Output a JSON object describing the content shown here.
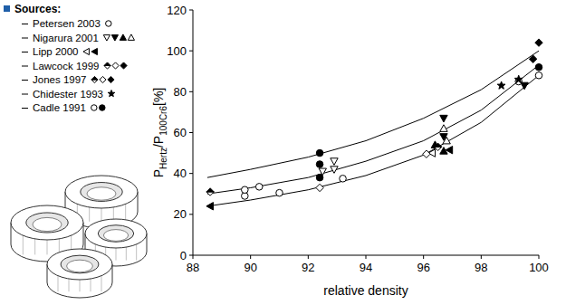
{
  "chart_data": {
    "type": "scatter",
    "legend_title": "Sources:",
    "x_label": "relative density",
    "y_label": [
      "P",
      "Hertz",
      "/P",
      "100Cr6",
      "[%]"
    ],
    "xlim": [
      88,
      100
    ],
    "ylim": [
      0,
      120
    ],
    "xticks": [
      88,
      90,
      92,
      94,
      96,
      98,
      100
    ],
    "yticks": [
      0,
      20,
      40,
      60,
      80,
      100,
      120
    ],
    "grid": false,
    "legend": "top-left",
    "color": "#000000",
    "series": [
      {
        "name": "Petersen 2003",
        "x": [
          89.8,
          90.3,
          91.0,
          93.2,
          99.3,
          100.0
        ],
        "values": [
          29,
          33.5,
          30.5,
          37.5,
          85,
          88
        ],
        "markers": [
          "circle-open",
          "circle-open",
          "circle-open",
          "circle-open",
          "circle-open",
          "circle-open"
        ]
      },
      {
        "name": "Nigarura 2001",
        "x": [
          92.5,
          92.9,
          92.9,
          96.7,
          96.7,
          99.5,
          96.4,
          96.7,
          96.8,
          96.7
        ],
        "values": [
          41,
          46,
          42,
          67,
          58,
          83,
          54,
          51,
          56,
          62
        ],
        "markers": [
          "triangle-down-open",
          "triangle-down-open",
          "triangle-down-open",
          "triangle-down-filled",
          "triangle-down-filled",
          "triangle-down-filled",
          "triangle-up-filled",
          "triangle-up-filled",
          "triangle-up-open",
          "triangle-up-open"
        ]
      },
      {
        "name": "Lipp 2000",
        "x": [
          96.3,
          88.6,
          96.9
        ],
        "values": [
          50,
          24,
          51.5
        ],
        "markers": [
          "triangle-left-open",
          "triangle-left-filled",
          "triangle-left-filled"
        ]
      },
      {
        "name": "Lawcock 1999",
        "x": [
          88.6,
          92.4,
          100.0
        ],
        "values": [
          31,
          33,
          104
        ],
        "markers": [
          "diamond-half",
          "diamond-open",
          "diamond-filled"
        ]
      },
      {
        "name": "Jones 1997",
        "x": [
          96.5,
          96.1,
          99.8
        ],
        "values": [
          53,
          49.5,
          96
        ],
        "markers": [
          "diamond-half",
          "diamond-open",
          "diamond-filled"
        ]
      },
      {
        "name": "Chidester 1993",
        "x": [
          98.7,
          99.3
        ],
        "values": [
          83,
          86
        ],
        "markers": [
          "star",
          "star"
        ]
      },
      {
        "name": "Cadle 1991",
        "x": [
          89.8,
          92.4,
          92.4,
          92.4,
          100.0
        ],
        "values": [
          32,
          50,
          44.5,
          38,
          92
        ],
        "markers": [
          "circle-open",
          "circle-filled",
          "circle-filled",
          "circle-filled",
          "circle-filled"
        ]
      },
      {
        "type": "line",
        "x": [
          88.5,
          90,
          92,
          94,
          96,
          98,
          100
        ],
        "values": [
          38,
          42,
          48,
          56,
          67,
          81,
          100
        ]
      },
      {
        "type": "line",
        "x": [
          88.5,
          90,
          92,
          94,
          96,
          98,
          100
        ],
        "values": [
          30,
          33,
          38,
          46,
          56,
          71,
          93
        ]
      },
      {
        "type": "line",
        "x": [
          88.5,
          90,
          92,
          94,
          96,
          98,
          100
        ],
        "values": [
          24,
          27,
          32,
          39,
          49,
          65,
          88
        ]
      }
    ]
  }
}
